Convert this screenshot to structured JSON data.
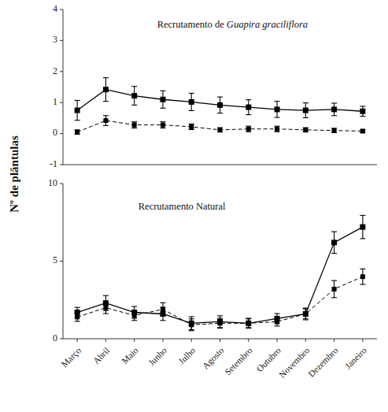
{
  "chart_data": [
    {
      "type": "line",
      "ylabel": "Nº de plântulas",
      "annotations": [
        "Recrutamento de ",
        "Guapira graciliflora"
      ],
      "categories": [
        "Março",
        "Abril",
        "Maio",
        "Junho",
        "Julho",
        "Agosto",
        "Setembro",
        "Outubro",
        "Novembro",
        "Dezembro",
        "Janeiro"
      ],
      "tick_labels": "y",
      "grid": false,
      "ylim": [
        -1,
        4
      ],
      "yticks": [
        -1,
        0,
        1,
        2,
        3,
        4
      ],
      "series": [
        {
          "color": "#000000",
          "line_style": "solid",
          "marker": "square",
          "values": [
            0.75,
            1.42,
            1.22,
            1.1,
            1.02,
            0.92,
            0.85,
            0.78,
            0.75,
            0.78,
            0.72
          ],
          "errors": [
            0.32,
            0.38,
            0.3,
            0.28,
            0.28,
            0.26,
            0.24,
            0.26,
            0.24,
            0.2,
            0.16
          ]
        },
        {
          "color": "#000000",
          "line_style": "dashed",
          "marker": "square",
          "values": [
            0.05,
            0.42,
            0.28,
            0.28,
            0.22,
            0.12,
            0.15,
            0.15,
            0.12,
            0.1,
            0.08
          ],
          "errors": [
            0.07,
            0.16,
            0.1,
            0.1,
            0.09,
            0.07,
            0.09,
            0.09,
            0.07,
            0.07,
            0.05
          ]
        }
      ]
    },
    {
      "type": "line",
      "annotations": [
        "Recrutamento Natural"
      ],
      "categories": [
        "Março",
        "Abril",
        "Maio",
        "Junho",
        "Julho",
        "Agosto",
        "Setembro",
        "Outubro",
        "Novembro",
        "Dezembro",
        "Janeiro"
      ],
      "grid": false,
      "ylim": [
        0,
        10
      ],
      "yticks": [
        0,
        5,
        10
      ],
      "series": [
        {
          "color": "#000000",
          "line_style": "solid",
          "marker": "square",
          "values": [
            1.7,
            2.3,
            1.7,
            1.6,
            1.0,
            1.1,
            1.0,
            1.3,
            1.6,
            6.2,
            7.2
          ],
          "errors": [
            0.32,
            0.48,
            0.38,
            0.42,
            0.42,
            0.38,
            0.32,
            0.32,
            0.38,
            0.7,
            0.75
          ]
        },
        {
          "color": "#000000",
          "line_style": "dashed",
          "marker": "square",
          "values": [
            1.4,
            2.0,
            1.5,
            1.9,
            0.9,
            1.0,
            1.0,
            1.1,
            1.6,
            3.2,
            4.0
          ],
          "errors": [
            0.28,
            0.38,
            0.32,
            0.42,
            0.38,
            0.32,
            0.28,
            0.28,
            0.32,
            0.55,
            0.5
          ]
        }
      ]
    }
  ]
}
